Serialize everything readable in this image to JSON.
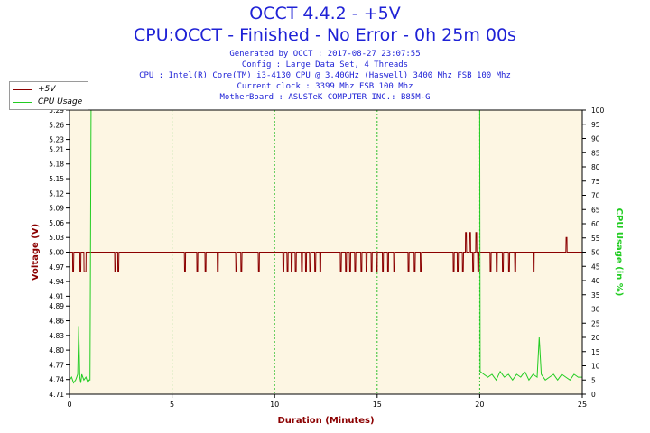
{
  "header": {
    "title": "OCCT 4.4.2 - +5V",
    "subtitle": "CPU:OCCT - Finished - No Error - 0h 25m 00s",
    "info_lines": [
      "Generated by OCCT : 2017-08-27 23:07:55",
      "Config : Large Data Set, 4 Threads",
      "CPU : Intel(R) Core(TM) i3-4130 CPU @ 3.40GHz (Haswell) 3400 Mhz FSB 100 Mhz",
      "Current clock : 3399 Mhz FSB 100 Mhz",
      "MotherBoard : ASUSTeK COMPUTER INC.: B85M-G"
    ]
  },
  "legend": {
    "items": [
      {
        "label": "+5V",
        "color": "#8b0000"
      },
      {
        "label": "CPU Usage",
        "color": "#22cc22"
      }
    ]
  },
  "colors": {
    "plot_background": "#fdf6e3",
    "grid": "#2fbf2f",
    "voltage": "#8b0000",
    "cpu": "#22cc22",
    "left_axis_text": "#8b0000",
    "right_axis_text": "#22cc22"
  },
  "chart_data": {
    "type": "line",
    "xlabel": "Duration (Minutes)",
    "ylabel": "Voltage (V)",
    "y2label": "CPU Usage (in %)",
    "xlim": [
      0,
      25
    ],
    "ylim": [
      4.71,
      5.29
    ],
    "y2lim": [
      0,
      100
    ],
    "x_ticks": [
      0,
      5,
      10,
      15,
      20,
      25
    ],
    "y_ticks": [
      "4.71",
      "4.74",
      "4.77",
      "4.80",
      "4.83",
      "4.86",
      "4.89",
      "4.91",
      "4.94",
      "4.97",
      "5.00",
      "5.03",
      "5.06",
      "5.09",
      "5.12",
      "5.15",
      "5.18",
      "5.21",
      "5.23",
      "5.26",
      "5.29"
    ],
    "y2_ticks": [
      0,
      5,
      10,
      15,
      20,
      25,
      30,
      35,
      40,
      45,
      50,
      55,
      60,
      65,
      70,
      75,
      80,
      85,
      90,
      95,
      100
    ],
    "grid": true,
    "legend_position": "top-left",
    "series": [
      {
        "name": "+5V",
        "axis": "left",
        "baseline": 5.0,
        "points": [
          [
            0.0,
            5.0
          ],
          [
            0.15,
            5.0
          ],
          [
            0.16,
            4.96
          ],
          [
            0.2,
            4.96
          ],
          [
            0.21,
            5.0
          ],
          [
            0.5,
            5.0
          ],
          [
            0.51,
            4.96
          ],
          [
            0.55,
            4.96
          ],
          [
            0.56,
            5.0
          ],
          [
            0.7,
            5.0
          ],
          [
            0.71,
            4.96
          ],
          [
            0.8,
            4.96
          ],
          [
            0.81,
            5.0
          ],
          [
            2.2,
            5.0
          ],
          [
            2.21,
            4.96
          ],
          [
            2.25,
            4.96
          ],
          [
            2.26,
            5.0
          ],
          [
            2.35,
            5.0
          ],
          [
            2.36,
            4.96
          ],
          [
            2.4,
            4.96
          ],
          [
            2.41,
            5.0
          ],
          [
            5.6,
            5.0
          ],
          [
            5.61,
            4.96
          ],
          [
            5.65,
            4.96
          ],
          [
            5.66,
            5.0
          ],
          [
            6.2,
            5.0
          ],
          [
            6.21,
            4.96
          ],
          [
            6.25,
            4.96
          ],
          [
            6.26,
            5.0
          ],
          [
            6.6,
            5.0
          ],
          [
            6.61,
            4.96
          ],
          [
            6.65,
            4.96
          ],
          [
            6.66,
            5.0
          ],
          [
            7.2,
            5.0
          ],
          [
            7.21,
            4.96
          ],
          [
            7.25,
            4.96
          ],
          [
            7.26,
            5.0
          ],
          [
            8.1,
            5.0
          ],
          [
            8.11,
            4.96
          ],
          [
            8.15,
            4.96
          ],
          [
            8.16,
            5.0
          ],
          [
            8.35,
            5.0
          ],
          [
            8.36,
            4.96
          ],
          [
            8.4,
            4.96
          ],
          [
            8.41,
            5.0
          ],
          [
            9.2,
            5.0
          ],
          [
            9.21,
            4.96
          ],
          [
            9.25,
            4.96
          ],
          [
            9.26,
            5.0
          ],
          [
            10.4,
            5.0
          ],
          [
            10.41,
            4.96
          ],
          [
            10.45,
            4.96
          ],
          [
            10.46,
            5.0
          ],
          [
            10.6,
            5.0
          ],
          [
            10.61,
            4.96
          ],
          [
            10.65,
            4.96
          ],
          [
            10.66,
            5.0
          ],
          [
            10.8,
            5.0
          ],
          [
            10.81,
            4.96
          ],
          [
            10.85,
            4.96
          ],
          [
            10.86,
            5.0
          ],
          [
            11.0,
            5.0
          ],
          [
            11.01,
            4.96
          ],
          [
            11.05,
            4.96
          ],
          [
            11.06,
            5.0
          ],
          [
            11.3,
            5.0
          ],
          [
            11.31,
            4.96
          ],
          [
            11.35,
            4.96
          ],
          [
            11.36,
            5.0
          ],
          [
            11.5,
            5.0
          ],
          [
            11.51,
            4.96
          ],
          [
            11.55,
            4.96
          ],
          [
            11.56,
            5.0
          ],
          [
            11.7,
            5.0
          ],
          [
            11.71,
            4.96
          ],
          [
            11.75,
            4.96
          ],
          [
            11.76,
            5.0
          ],
          [
            11.95,
            5.0
          ],
          [
            11.96,
            4.96
          ],
          [
            12.0,
            4.96
          ],
          [
            12.01,
            5.0
          ],
          [
            12.2,
            5.0
          ],
          [
            12.21,
            4.96
          ],
          [
            12.25,
            4.96
          ],
          [
            12.26,
            5.0
          ],
          [
            13.2,
            5.0
          ],
          [
            13.21,
            4.96
          ],
          [
            13.25,
            4.96
          ],
          [
            13.26,
            5.0
          ],
          [
            13.45,
            5.0
          ],
          [
            13.46,
            4.96
          ],
          [
            13.5,
            4.96
          ],
          [
            13.51,
            5.0
          ],
          [
            13.65,
            5.0
          ],
          [
            13.66,
            4.96
          ],
          [
            13.7,
            4.96
          ],
          [
            13.71,
            5.0
          ],
          [
            13.9,
            5.0
          ],
          [
            13.91,
            4.96
          ],
          [
            13.95,
            4.96
          ],
          [
            13.96,
            5.0
          ],
          [
            14.2,
            5.0
          ],
          [
            14.21,
            4.96
          ],
          [
            14.25,
            4.96
          ],
          [
            14.26,
            5.0
          ],
          [
            14.45,
            5.0
          ],
          [
            14.46,
            4.96
          ],
          [
            14.5,
            4.96
          ],
          [
            14.51,
            5.0
          ],
          [
            14.7,
            5.0
          ],
          [
            14.71,
            4.96
          ],
          [
            14.75,
            4.96
          ],
          [
            14.76,
            5.0
          ],
          [
            14.95,
            5.0
          ],
          [
            14.96,
            4.96
          ],
          [
            15.0,
            4.96
          ],
          [
            15.01,
            5.0
          ],
          [
            15.25,
            5.0
          ],
          [
            15.26,
            4.96
          ],
          [
            15.3,
            4.96
          ],
          [
            15.31,
            5.0
          ],
          [
            15.5,
            5.0
          ],
          [
            15.51,
            4.96
          ],
          [
            15.55,
            4.96
          ],
          [
            15.56,
            5.0
          ],
          [
            15.8,
            5.0
          ],
          [
            15.81,
            4.96
          ],
          [
            15.85,
            4.96
          ],
          [
            15.86,
            5.0
          ],
          [
            16.5,
            5.0
          ],
          [
            16.51,
            4.96
          ],
          [
            16.55,
            4.96
          ],
          [
            16.56,
            5.0
          ],
          [
            16.8,
            5.0
          ],
          [
            16.81,
            4.96
          ],
          [
            16.85,
            4.96
          ],
          [
            16.86,
            5.0
          ],
          [
            17.1,
            5.0
          ],
          [
            17.11,
            4.96
          ],
          [
            17.15,
            4.96
          ],
          [
            17.16,
            5.0
          ],
          [
            18.7,
            5.0
          ],
          [
            18.71,
            4.96
          ],
          [
            18.75,
            4.96
          ],
          [
            18.76,
            5.0
          ],
          [
            18.9,
            5.0
          ],
          [
            18.91,
            4.96
          ],
          [
            18.95,
            4.96
          ],
          [
            18.96,
            5.0
          ],
          [
            19.15,
            5.0
          ],
          [
            19.16,
            4.96
          ],
          [
            19.2,
            4.96
          ],
          [
            19.21,
            5.0
          ],
          [
            19.3,
            5.0
          ],
          [
            19.31,
            5.04
          ],
          [
            19.35,
            5.04
          ],
          [
            19.36,
            5.0
          ],
          [
            19.5,
            5.0
          ],
          [
            19.51,
            5.04
          ],
          [
            19.55,
            5.04
          ],
          [
            19.56,
            5.0
          ],
          [
            19.65,
            5.0
          ],
          [
            19.66,
            4.96
          ],
          [
            19.7,
            4.96
          ],
          [
            19.71,
            5.0
          ],
          [
            19.8,
            5.0
          ],
          [
            19.81,
            5.04
          ],
          [
            19.85,
            5.04
          ],
          [
            19.86,
            5.0
          ],
          [
            19.9,
            5.0
          ],
          [
            19.91,
            4.96
          ],
          [
            19.95,
            4.96
          ],
          [
            19.96,
            5.0
          ],
          [
            20.5,
            5.0
          ],
          [
            20.51,
            4.96
          ],
          [
            20.55,
            4.96
          ],
          [
            20.56,
            5.0
          ],
          [
            20.8,
            5.0
          ],
          [
            20.81,
            4.96
          ],
          [
            20.85,
            4.96
          ],
          [
            20.86,
            5.0
          ],
          [
            21.1,
            5.0
          ],
          [
            21.11,
            4.96
          ],
          [
            21.15,
            4.96
          ],
          [
            21.16,
            5.0
          ],
          [
            21.4,
            5.0
          ],
          [
            21.41,
            4.96
          ],
          [
            21.45,
            4.96
          ],
          [
            21.46,
            5.0
          ],
          [
            21.7,
            5.0
          ],
          [
            21.71,
            4.96
          ],
          [
            21.75,
            4.96
          ],
          [
            21.76,
            5.0
          ],
          [
            22.6,
            5.0
          ],
          [
            22.61,
            4.96
          ],
          [
            22.65,
            4.96
          ],
          [
            22.66,
            5.0
          ],
          [
            24.2,
            5.0
          ],
          [
            24.21,
            5.03
          ],
          [
            24.25,
            5.03
          ],
          [
            24.26,
            5.0
          ],
          [
            25.0,
            5.0
          ]
        ]
      },
      {
        "name": "CPU Usage",
        "axis": "right",
        "points": [
          [
            0.0,
            5
          ],
          [
            0.1,
            6
          ],
          [
            0.2,
            4
          ],
          [
            0.3,
            5
          ],
          [
            0.35,
            6
          ],
          [
            0.4,
            7
          ],
          [
            0.45,
            24
          ],
          [
            0.5,
            6
          ],
          [
            0.55,
            4
          ],
          [
            0.6,
            7
          ],
          [
            0.7,
            5
          ],
          [
            0.8,
            6
          ],
          [
            0.9,
            4
          ],
          [
            0.95,
            5
          ],
          [
            1.0,
            5
          ],
          [
            1.05,
            100
          ],
          [
            1.1,
            100
          ],
          [
            19.95,
            100
          ],
          [
            20.0,
            100
          ],
          [
            20.02,
            8
          ],
          [
            20.2,
            7
          ],
          [
            20.4,
            6
          ],
          [
            20.6,
            7
          ],
          [
            20.8,
            5
          ],
          [
            21.0,
            8
          ],
          [
            21.2,
            6
          ],
          [
            21.4,
            7
          ],
          [
            21.6,
            5
          ],
          [
            21.8,
            7
          ],
          [
            22.0,
            6
          ],
          [
            22.2,
            8
          ],
          [
            22.4,
            5
          ],
          [
            22.6,
            7
          ],
          [
            22.8,
            6
          ],
          [
            22.9,
            20
          ],
          [
            23.0,
            7
          ],
          [
            23.2,
            5
          ],
          [
            23.4,
            6
          ],
          [
            23.6,
            7
          ],
          [
            23.8,
            5
          ],
          [
            24.0,
            7
          ],
          [
            24.2,
            6
          ],
          [
            24.4,
            5
          ],
          [
            24.6,
            7
          ],
          [
            24.8,
            6
          ],
          [
            25.0,
            6
          ]
        ]
      }
    ]
  }
}
